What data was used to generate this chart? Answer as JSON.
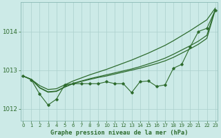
{
  "xlabel": "Graphe pression niveau de la mer (hPa)",
  "bg_color": "#cceae7",
  "grid_color": "#aad0cc",
  "line_color": "#2d6b2d",
  "x_ticks": [
    0,
    1,
    2,
    3,
    4,
    5,
    6,
    7,
    8,
    9,
    10,
    11,
    12,
    13,
    14,
    15,
    16,
    17,
    18,
    19,
    20,
    21,
    22,
    23
  ],
  "y_ticks": [
    1012,
    1013,
    1014
  ],
  "ylim": [
    1011.7,
    1014.75
  ],
  "xlim": [
    -0.3,
    23.3
  ],
  "line_noisy": [
    1012.85,
    1012.75,
    1012.38,
    1012.1,
    1012.25,
    1012.62,
    1012.65,
    1012.65,
    1012.65,
    1012.65,
    1012.7,
    1012.65,
    1012.65,
    1012.42,
    1012.7,
    1012.72,
    1012.58,
    1012.62,
    1013.05,
    1013.15,
    1013.6,
    1014.0,
    1014.08,
    1014.55
  ],
  "line_smooth_top": [
    1012.85,
    1012.76,
    1012.6,
    1012.5,
    1012.52,
    1012.62,
    1012.72,
    1012.8,
    1012.88,
    1012.95,
    1013.02,
    1013.1,
    1013.18,
    1013.26,
    1013.35,
    1013.44,
    1013.54,
    1013.64,
    1013.76,
    1013.89,
    1014.02,
    1014.16,
    1014.3,
    1014.6
  ],
  "line_smooth_mid1": [
    1012.85,
    1012.76,
    1012.55,
    1012.44,
    1012.46,
    1012.57,
    1012.66,
    1012.72,
    1012.78,
    1012.83,
    1012.88,
    1012.93,
    1012.98,
    1013.03,
    1013.09,
    1013.16,
    1013.23,
    1013.31,
    1013.41,
    1013.52,
    1013.63,
    1013.75,
    1013.9,
    1014.57
  ],
  "line_smooth_mid2": [
    1012.85,
    1012.76,
    1012.54,
    1012.43,
    1012.45,
    1012.56,
    1012.65,
    1012.71,
    1012.76,
    1012.81,
    1012.85,
    1012.9,
    1012.95,
    1013.0,
    1013.05,
    1013.11,
    1013.17,
    1013.24,
    1013.33,
    1013.44,
    1013.55,
    1013.67,
    1013.82,
    1014.55
  ]
}
